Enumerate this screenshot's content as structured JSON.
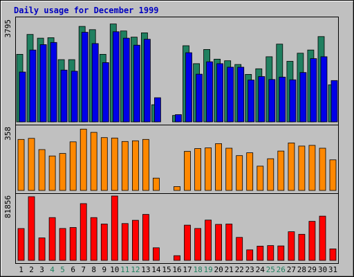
{
  "chart_data": {
    "type": "bar",
    "title": "Daily usage for December 1999",
    "categories": [
      "1",
      "2",
      "3",
      "4",
      "5",
      "6",
      "7",
      "8",
      "9",
      "10",
      "11",
      "12",
      "13",
      "14",
      "15",
      "16",
      "17",
      "18",
      "19",
      "20",
      "21",
      "22",
      "23",
      "24",
      "25",
      "26",
      "27",
      "28",
      "29",
      "30",
      "31"
    ],
    "weekend_days": [
      4,
      5,
      11,
      12,
      18,
      19,
      25,
      26
    ],
    "panels": [
      {
        "max_label": "3795",
        "ylim": [
          0,
          3795
        ],
        "series": [
          {
            "color": "#208060",
            "values": [
              2520,
              3260,
              3120,
              3140,
              2320,
              2320,
              3560,
              3440,
              2520,
              3650,
              3390,
              3160,
              3320,
              640,
              0,
              240,
              2840,
              2170,
              2700,
              2340,
              2280,
              2140,
              1770,
              1980,
              2430,
              2900,
              2260,
              2560,
              2680,
              3180,
              1380
            ]
          },
          {
            "color": "#0000e8",
            "values": [
              1860,
              2680,
              2880,
              2960,
              1930,
              1890,
              3340,
              2920,
              2210,
              3360,
              3120,
              2860,
              3080,
              900,
              0,
              270,
              2580,
              1780,
              2240,
              2170,
              2040,
              2040,
              1560,
              1690,
              1580,
              1670,
              1570,
              1840,
              2360,
              2430,
              1540
            ]
          }
        ]
      },
      {
        "max_label": "358",
        "ylim": [
          0,
          358
        ],
        "series": [
          {
            "color": "#ff8800",
            "values": [
              290,
              296,
              232,
              196,
              210,
              276,
              348,
              330,
              300,
              298,
              278,
              282,
              290,
              70,
              0,
              22,
              222,
              238,
              242,
              266,
              240,
              198,
              214,
              138,
              180,
              224,
              270,
              252,
              256,
              240,
              174
            ]
          }
        ]
      },
      {
        "max_label": "81856",
        "ylim": [
          0,
          81856
        ],
        "series": [
          {
            "color": "#ff0000",
            "values": [
              40500,
              81000,
              28600,
              54400,
              40600,
              41800,
              72200,
              54400,
              46200,
              81856,
              46800,
              51000,
              58400,
              16000,
              0,
              6000,
              44800,
              40600,
              51200,
              45800,
              46200,
              29200,
              13400,
              18100,
              18800,
              18400,
              36400,
              33200,
              49600,
              56200,
              14600
            ]
          }
        ]
      }
    ]
  },
  "colors": {
    "background": "#c0c0c0",
    "title": "#0000c0",
    "weekday_label": "#000000",
    "weekend_label": "#208060"
  }
}
